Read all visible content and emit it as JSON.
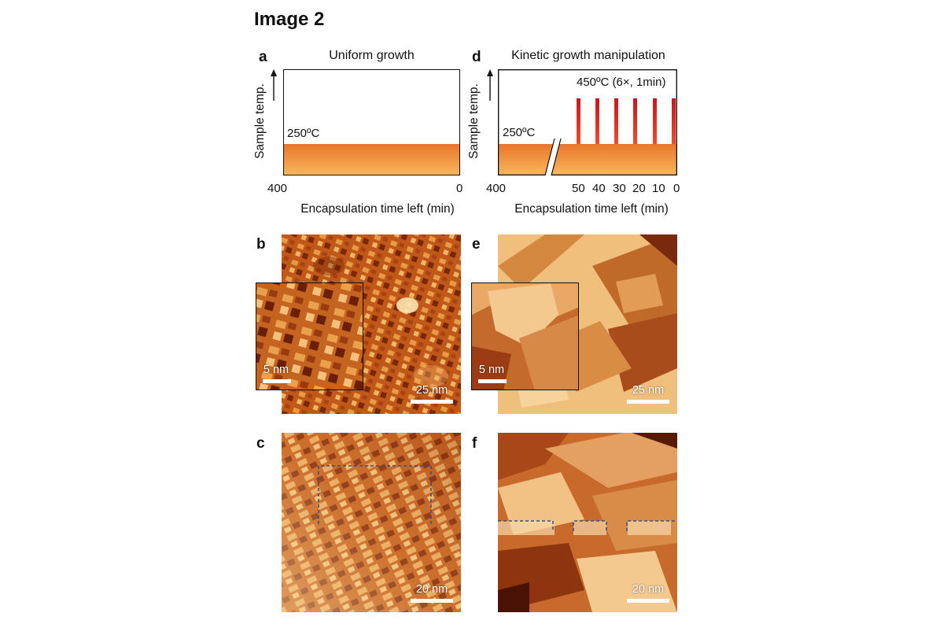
{
  "title": "Image 2",
  "panels": {
    "a": {
      "letter": "a",
      "title": "Uniform growth",
      "ylabel": "Sample temp.",
      "temp_label": "250ºC",
      "xlabel": "Encapsulation time left (min)",
      "x_ticks": [
        "400",
        "0"
      ]
    },
    "d": {
      "letter": "d",
      "title": "Kinetic growth manipulation",
      "ylabel": "Sample temp.",
      "temp_label": "250ºC",
      "pulse_label": "450ºC (6×, 1min)",
      "xlabel": "Encapsulation time left (min)",
      "x_ticks": [
        "400",
        "50",
        "40",
        "30",
        "20",
        "10",
        "0"
      ]
    },
    "b": {
      "letter": "b",
      "scale_main": "25 nm",
      "scale_inset": "5 nm"
    },
    "e": {
      "letter": "e",
      "scale_main": "25 nm",
      "scale_inset": "5 nm"
    },
    "c": {
      "letter": "c",
      "scale_main": "20 nm"
    },
    "f": {
      "letter": "f",
      "scale_main": "20 nm"
    }
  },
  "colors": {
    "orange_top": "#e9762a",
    "orange_bottom": "#f6b25a",
    "pulse_red": "#d81f26",
    "stm_dark": "#6b1e08",
    "stm_mid": "#c9651f",
    "stm_light": "#f6c98a",
    "dashed_line": "#3a4e8c"
  }
}
